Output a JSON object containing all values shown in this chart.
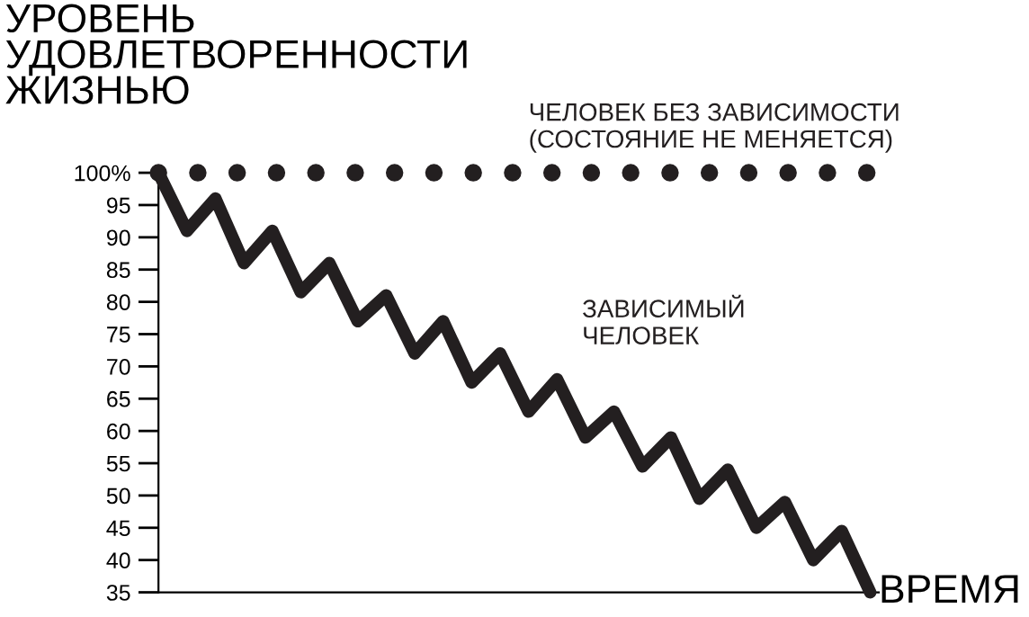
{
  "chart_data": {
    "type": "line",
    "ylabel": "УРОВЕНЬ\nУДОВЛЕТВОРЕННОСТИ\nЖИЗНЬЮ",
    "xlabel": "ВРЕМЯ",
    "categories": [
      null,
      null,
      null,
      null,
      null,
      null,
      null,
      null,
      null,
      null,
      null,
      null,
      null,
      null,
      null,
      null,
      null,
      null,
      null,
      null,
      null,
      null,
      null,
      null,
      null,
      null
    ],
    "series": [
      {
        "name": "ЧЕЛОВЕК БЕЗ ЗАВИСИМОСТИ\n(СОСТОЯНИЕ НЕ МЕНЯЕТСЯ)",
        "color": "#231f20",
        "line_style": "dotted",
        "values": [
          100,
          100,
          100,
          100,
          100,
          100,
          100,
          100,
          100,
          100,
          100,
          100,
          100,
          100,
          100,
          100,
          100,
          100,
          100,
          100,
          100,
          100,
          100,
          100,
          100,
          100
        ]
      },
      {
        "name": "ЗАВИСИМЫЙ\nЧЕЛОВЕК",
        "color": "#231f20",
        "line_style": "solid",
        "values": [
          100,
          91,
          96,
          86,
          91,
          81.5,
          86,
          77,
          81,
          72,
          77,
          67.5,
          72,
          63,
          68,
          59,
          63,
          54.5,
          59,
          49.5,
          54,
          45,
          49,
          40,
          44.5,
          35
        ]
      }
    ],
    "ylim": [
      35,
      100
    ],
    "yticks": [
      35,
      40,
      45,
      50,
      55,
      60,
      65,
      70,
      75,
      80,
      85,
      90,
      95,
      {
        "value": 100,
        "label": "100%"
      }
    ],
    "tick_labels": "y",
    "grid": false,
    "legend": false,
    "marker": "none"
  }
}
